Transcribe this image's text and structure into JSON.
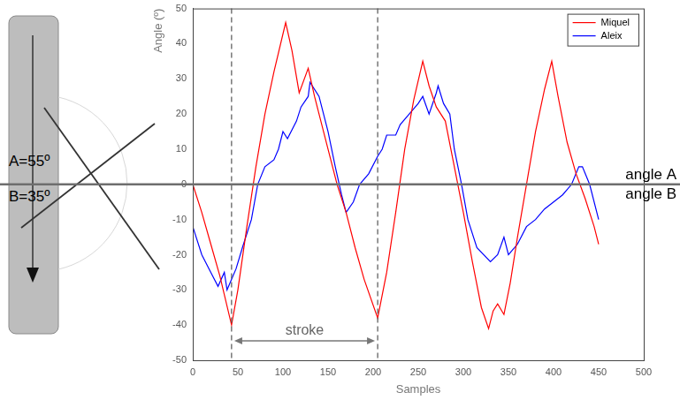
{
  "chart_data": {
    "type": "line",
    "x_label": "Samples",
    "y_label": "Angle (º)",
    "xlim": [
      0,
      500
    ],
    "xticks": [
      0,
      50,
      100,
      150,
      200,
      250,
      300,
      350,
      400,
      450,
      500
    ],
    "ylim": [
      -50,
      50
    ],
    "yticks": [
      -50,
      -40,
      -30,
      -20,
      -10,
      0,
      10,
      20,
      30,
      40,
      50
    ],
    "grid": false,
    "legend": "upper right",
    "series": [
      {
        "name": "Miquel",
        "color": "#ff0000",
        "line_style": "solid",
        "x": [
          0,
          10,
          20,
          30,
          43,
          50,
          60,
          70,
          80,
          90,
          103,
          110,
          118,
          128,
          135,
          145,
          160,
          170,
          180,
          190,
          205,
          215,
          225,
          235,
          245,
          255,
          262,
          270,
          280,
          290,
          300,
          310,
          320,
          328,
          333,
          338,
          345,
          352,
          360,
          370,
          380,
          390,
          398,
          405,
          415,
          425,
          435,
          445,
          450
        ],
        "values": [
          0,
          -8,
          -17,
          -26,
          -40,
          -30,
          -12,
          5,
          20,
          32,
          46,
          38,
          26,
          33,
          25,
          15,
          0,
          -8,
          -18,
          -27,
          -38,
          -25,
          -8,
          10,
          24,
          35,
          28,
          22,
          18,
          5,
          -8,
          -22,
          -35,
          -41,
          -36,
          -34,
          -37,
          -28,
          -15,
          0,
          15,
          27,
          35,
          25,
          12,
          3,
          -4,
          -12,
          -17
        ]
      },
      {
        "name": "Aleix",
        "color": "#0000ff",
        "line_style": "solid",
        "x": [
          0,
          10,
          20,
          28,
          35,
          38,
          48,
          55,
          65,
          72,
          80,
          90,
          95,
          100,
          105,
          115,
          120,
          128,
          130,
          140,
          150,
          158,
          165,
          170,
          178,
          185,
          195,
          205,
          210,
          215,
          225,
          230,
          240,
          250,
          255,
          262,
          270,
          272,
          278,
          285,
          290,
          298,
          305,
          315,
          330,
          338,
          345,
          350,
          360,
          370,
          380,
          390,
          400,
          410,
          420,
          428,
          432,
          440,
          450
        ],
        "values": [
          -12,
          -20,
          -25,
          -29,
          -25,
          -30,
          -24,
          -18,
          -10,
          0,
          5,
          7,
          10,
          15,
          13,
          18,
          22,
          25,
          29,
          25,
          15,
          5,
          -3,
          -8,
          -5,
          0,
          3,
          8,
          10,
          14,
          14,
          17,
          20,
          23,
          25,
          20,
          26,
          28,
          23,
          20,
          10,
          0,
          -10,
          -18,
          -22,
          -20,
          -15,
          -20,
          -17,
          -12,
          -10,
          -7,
          -5,
          -3,
          0,
          5,
          5,
          0,
          -10
        ]
      }
    ],
    "annotations": {
      "vlines": [
        43,
        205
      ],
      "span": {
        "from": 46,
        "to": 202,
        "y": -44.5,
        "label": "stroke"
      },
      "hline": {
        "y": 0,
        "above": "angle A",
        "below": "angle B"
      }
    },
    "diagram": {
      "labels": [
        "A=55º",
        "B=35º"
      ]
    }
  }
}
